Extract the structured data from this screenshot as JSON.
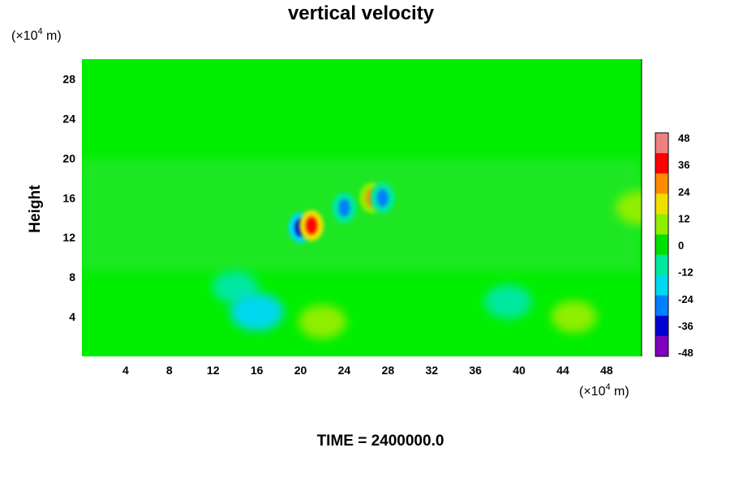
{
  "chart_data": {
    "type": "heatmap",
    "title": "vertical velocity",
    "ylabel": "Height",
    "x_unit": {
      "prefix": "(×10",
      "exp": "4",
      "suffix": " m)"
    },
    "y_unit": {
      "prefix": "(×10",
      "exp": "4",
      "suffix": " m)"
    },
    "xlim": [
      0,
      51.2
    ],
    "ylim": [
      0,
      30
    ],
    "x_ticks": [
      "4",
      "8",
      "12",
      "16",
      "20",
      "24",
      "28",
      "32",
      "36",
      "40",
      "44",
      "48"
    ],
    "y_ticks": [
      "4",
      "8",
      "12",
      "16",
      "20",
      "24",
      "28"
    ],
    "colorbar": {
      "range": [
        -48,
        48
      ],
      "tick_labels": [
        "48",
        "36",
        "24",
        "12",
        "0",
        "-12",
        "-24",
        "-36",
        "-48"
      ],
      "colors": [
        "#f08080",
        "#ff0000",
        "#ff8c00",
        "#f0e000",
        "#90ee00",
        "#00e000",
        "#00e8a0",
        "#00d8f0",
        "#0080ff",
        "#0000d0",
        "#8000c0"
      ]
    },
    "features": [
      {
        "x": 14,
        "y": 7,
        "value": -10
      },
      {
        "x": 20,
        "y": 13,
        "value": -36
      },
      {
        "x": 21,
        "y": 13.2,
        "value": 36
      },
      {
        "x": 24,
        "y": 15,
        "value": -30
      },
      {
        "x": 26.5,
        "y": 16,
        "value": 30
      },
      {
        "x": 27.5,
        "y": 16,
        "value": -24
      },
      {
        "x": 16,
        "y": 4.5,
        "value": -18
      },
      {
        "x": 22,
        "y": 3.5,
        "value": 12
      },
      {
        "x": 45,
        "y": 4,
        "value": 10
      },
      {
        "x": 51,
        "y": 15,
        "value": 12
      },
      {
        "x": 39,
        "y": 5.5,
        "value": -12
      }
    ]
  },
  "footer": {
    "time_label": "TIME = 2400000.0"
  }
}
